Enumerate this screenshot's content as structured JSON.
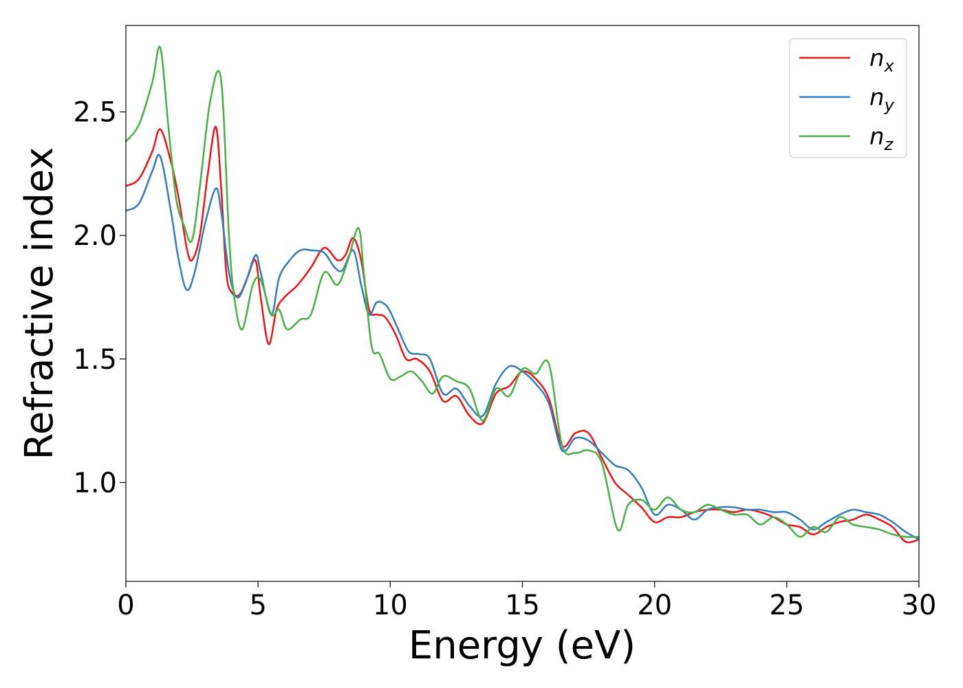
{
  "chart_data": {
    "type": "line",
    "title": "",
    "xlabel": "Energy (eV)",
    "ylabel": "Refractive index",
    "xlim": [
      0,
      30
    ],
    "ylim": [
      0.6,
      2.85
    ],
    "xticks": [
      0,
      5,
      10,
      15,
      20,
      25,
      30
    ],
    "yticks": [
      1.0,
      1.5,
      2.0,
      2.5
    ],
    "xtick_labels": [
      "0",
      "5",
      "10",
      "15",
      "20",
      "25",
      "30"
    ],
    "ytick_labels": [
      "1.0",
      "1.5",
      "2.0",
      "2.5"
    ],
    "grid": false,
    "legend": "top-right",
    "series": [
      {
        "name": "n_x",
        "label_main": "n",
        "label_sub": "x",
        "color": "#e41a1c",
        "x": [
          0,
          0.5,
          1.0,
          1.3,
          1.7,
          2.0,
          2.3,
          2.5,
          2.8,
          3.1,
          3.4,
          3.6,
          3.8,
          4.0,
          4.3,
          4.6,
          4.9,
          5.1,
          5.4,
          5.7,
          6.0,
          6.5,
          7.0,
          7.5,
          8.0,
          8.3,
          8.6,
          8.9,
          9.2,
          9.5,
          9.8,
          10.2,
          10.6,
          11.0,
          11.5,
          12.0,
          12.5,
          13.0,
          13.5,
          14.0,
          14.5,
          15.0,
          15.5,
          16.0,
          16.5,
          17.0,
          17.5,
          18.0,
          18.5,
          19.0,
          19.5,
          20.0,
          20.5,
          21.0,
          21.5,
          22.0,
          22.5,
          23.0,
          23.5,
          24.0,
          24.5,
          25.0,
          25.5,
          26.0,
          26.5,
          27.0,
          27.5,
          28.0,
          28.5,
          29.0,
          29.5,
          30.0
        ],
        "values": [
          2.2,
          2.23,
          2.34,
          2.43,
          2.3,
          2.15,
          1.95,
          1.9,
          2.0,
          2.25,
          2.44,
          2.2,
          1.85,
          1.77,
          1.76,
          1.83,
          1.9,
          1.75,
          1.56,
          1.7,
          1.75,
          1.8,
          1.87,
          1.95,
          1.9,
          1.92,
          1.99,
          1.9,
          1.7,
          1.68,
          1.67,
          1.6,
          1.5,
          1.5,
          1.45,
          1.33,
          1.35,
          1.27,
          1.24,
          1.36,
          1.39,
          1.45,
          1.42,
          1.34,
          1.15,
          1.2,
          1.2,
          1.1,
          1.0,
          0.95,
          0.9,
          0.84,
          0.86,
          0.86,
          0.88,
          0.89,
          0.89,
          0.88,
          0.89,
          0.88,
          0.86,
          0.83,
          0.82,
          0.79,
          0.82,
          0.84,
          0.85,
          0.87,
          0.85,
          0.82,
          0.76,
          0.77
        ]
      },
      {
        "name": "n_y",
        "label_main": "n",
        "label_sub": "y",
        "color": "#377eb8",
        "x": [
          0,
          0.5,
          1.0,
          1.3,
          1.7,
          2.0,
          2.3,
          2.6,
          3.0,
          3.4,
          3.6,
          3.9,
          4.2,
          4.5,
          4.9,
          5.1,
          5.5,
          5.8,
          6.2,
          6.6,
          7.0,
          7.5,
          7.9,
          8.2,
          8.6,
          8.9,
          9.2,
          9.5,
          9.9,
          10.3,
          10.7,
          11.1,
          11.5,
          12.0,
          12.5,
          13.0,
          13.5,
          14.0,
          14.5,
          15.0,
          15.5,
          16.0,
          16.5,
          17.0,
          17.5,
          18.0,
          18.5,
          19.0,
          19.5,
          20.0,
          20.5,
          21.0,
          21.5,
          22.0,
          22.5,
          23.0,
          23.5,
          24.0,
          24.5,
          25.0,
          25.5,
          26.0,
          26.5,
          27.0,
          27.5,
          28.0,
          28.5,
          29.0,
          29.5,
          30.0
        ],
        "values": [
          2.1,
          2.13,
          2.26,
          2.32,
          2.1,
          1.9,
          1.78,
          1.85,
          2.05,
          2.19,
          2.1,
          1.85,
          1.75,
          1.8,
          1.92,
          1.85,
          1.68,
          1.83,
          1.9,
          1.94,
          1.94,
          1.93,
          1.87,
          1.86,
          1.94,
          1.8,
          1.68,
          1.73,
          1.71,
          1.62,
          1.53,
          1.52,
          1.5,
          1.36,
          1.38,
          1.31,
          1.27,
          1.4,
          1.47,
          1.45,
          1.4,
          1.32,
          1.13,
          1.18,
          1.17,
          1.12,
          1.07,
          1.05,
          0.98,
          0.87,
          0.91,
          0.89,
          0.85,
          0.89,
          0.9,
          0.9,
          0.89,
          0.89,
          0.88,
          0.88,
          0.85,
          0.81,
          0.84,
          0.87,
          0.89,
          0.88,
          0.87,
          0.84,
          0.8,
          0.77
        ]
      },
      {
        "name": "n_z",
        "label_main": "n",
        "label_sub": "z",
        "color": "#4daf4a",
        "x": [
          0,
          0.5,
          1.0,
          1.3,
          1.6,
          1.9,
          2.2,
          2.5,
          2.8,
          3.2,
          3.6,
          3.9,
          4.1,
          4.4,
          4.8,
          5.1,
          5.5,
          5.8,
          6.1,
          6.6,
          7.0,
          7.5,
          8.0,
          8.4,
          8.8,
          9.0,
          9.3,
          9.6,
          10.0,
          10.4,
          10.8,
          11.2,
          11.6,
          12.0,
          12.5,
          13.0,
          13.5,
          14.0,
          14.5,
          15.0,
          15.5,
          16.0,
          16.5,
          17.0,
          17.5,
          18.0,
          18.6,
          19.0,
          19.5,
          20.0,
          20.5,
          21.0,
          21.5,
          22.0,
          22.5,
          23.0,
          23.5,
          24.0,
          24.5,
          25.0,
          25.5,
          26.0,
          26.5,
          27.0,
          27.5,
          28.0,
          28.5,
          29.0,
          29.5,
          30.0
        ],
        "values": [
          2.38,
          2.45,
          2.62,
          2.76,
          2.45,
          2.15,
          2.04,
          1.98,
          2.2,
          2.55,
          2.63,
          2.0,
          1.75,
          1.62,
          1.8,
          1.82,
          1.68,
          1.7,
          1.62,
          1.66,
          1.68,
          1.85,
          1.8,
          1.9,
          2.03,
          1.85,
          1.55,
          1.52,
          1.42,
          1.43,
          1.45,
          1.41,
          1.36,
          1.43,
          1.41,
          1.38,
          1.25,
          1.38,
          1.35,
          1.46,
          1.44,
          1.48,
          1.15,
          1.12,
          1.13,
          1.08,
          0.81,
          0.91,
          0.93,
          0.89,
          0.94,
          0.89,
          0.88,
          0.91,
          0.89,
          0.87,
          0.87,
          0.83,
          0.86,
          0.83,
          0.78,
          0.82,
          0.8,
          0.86,
          0.83,
          0.82,
          0.81,
          0.79,
          0.78,
          0.78
        ]
      }
    ]
  }
}
